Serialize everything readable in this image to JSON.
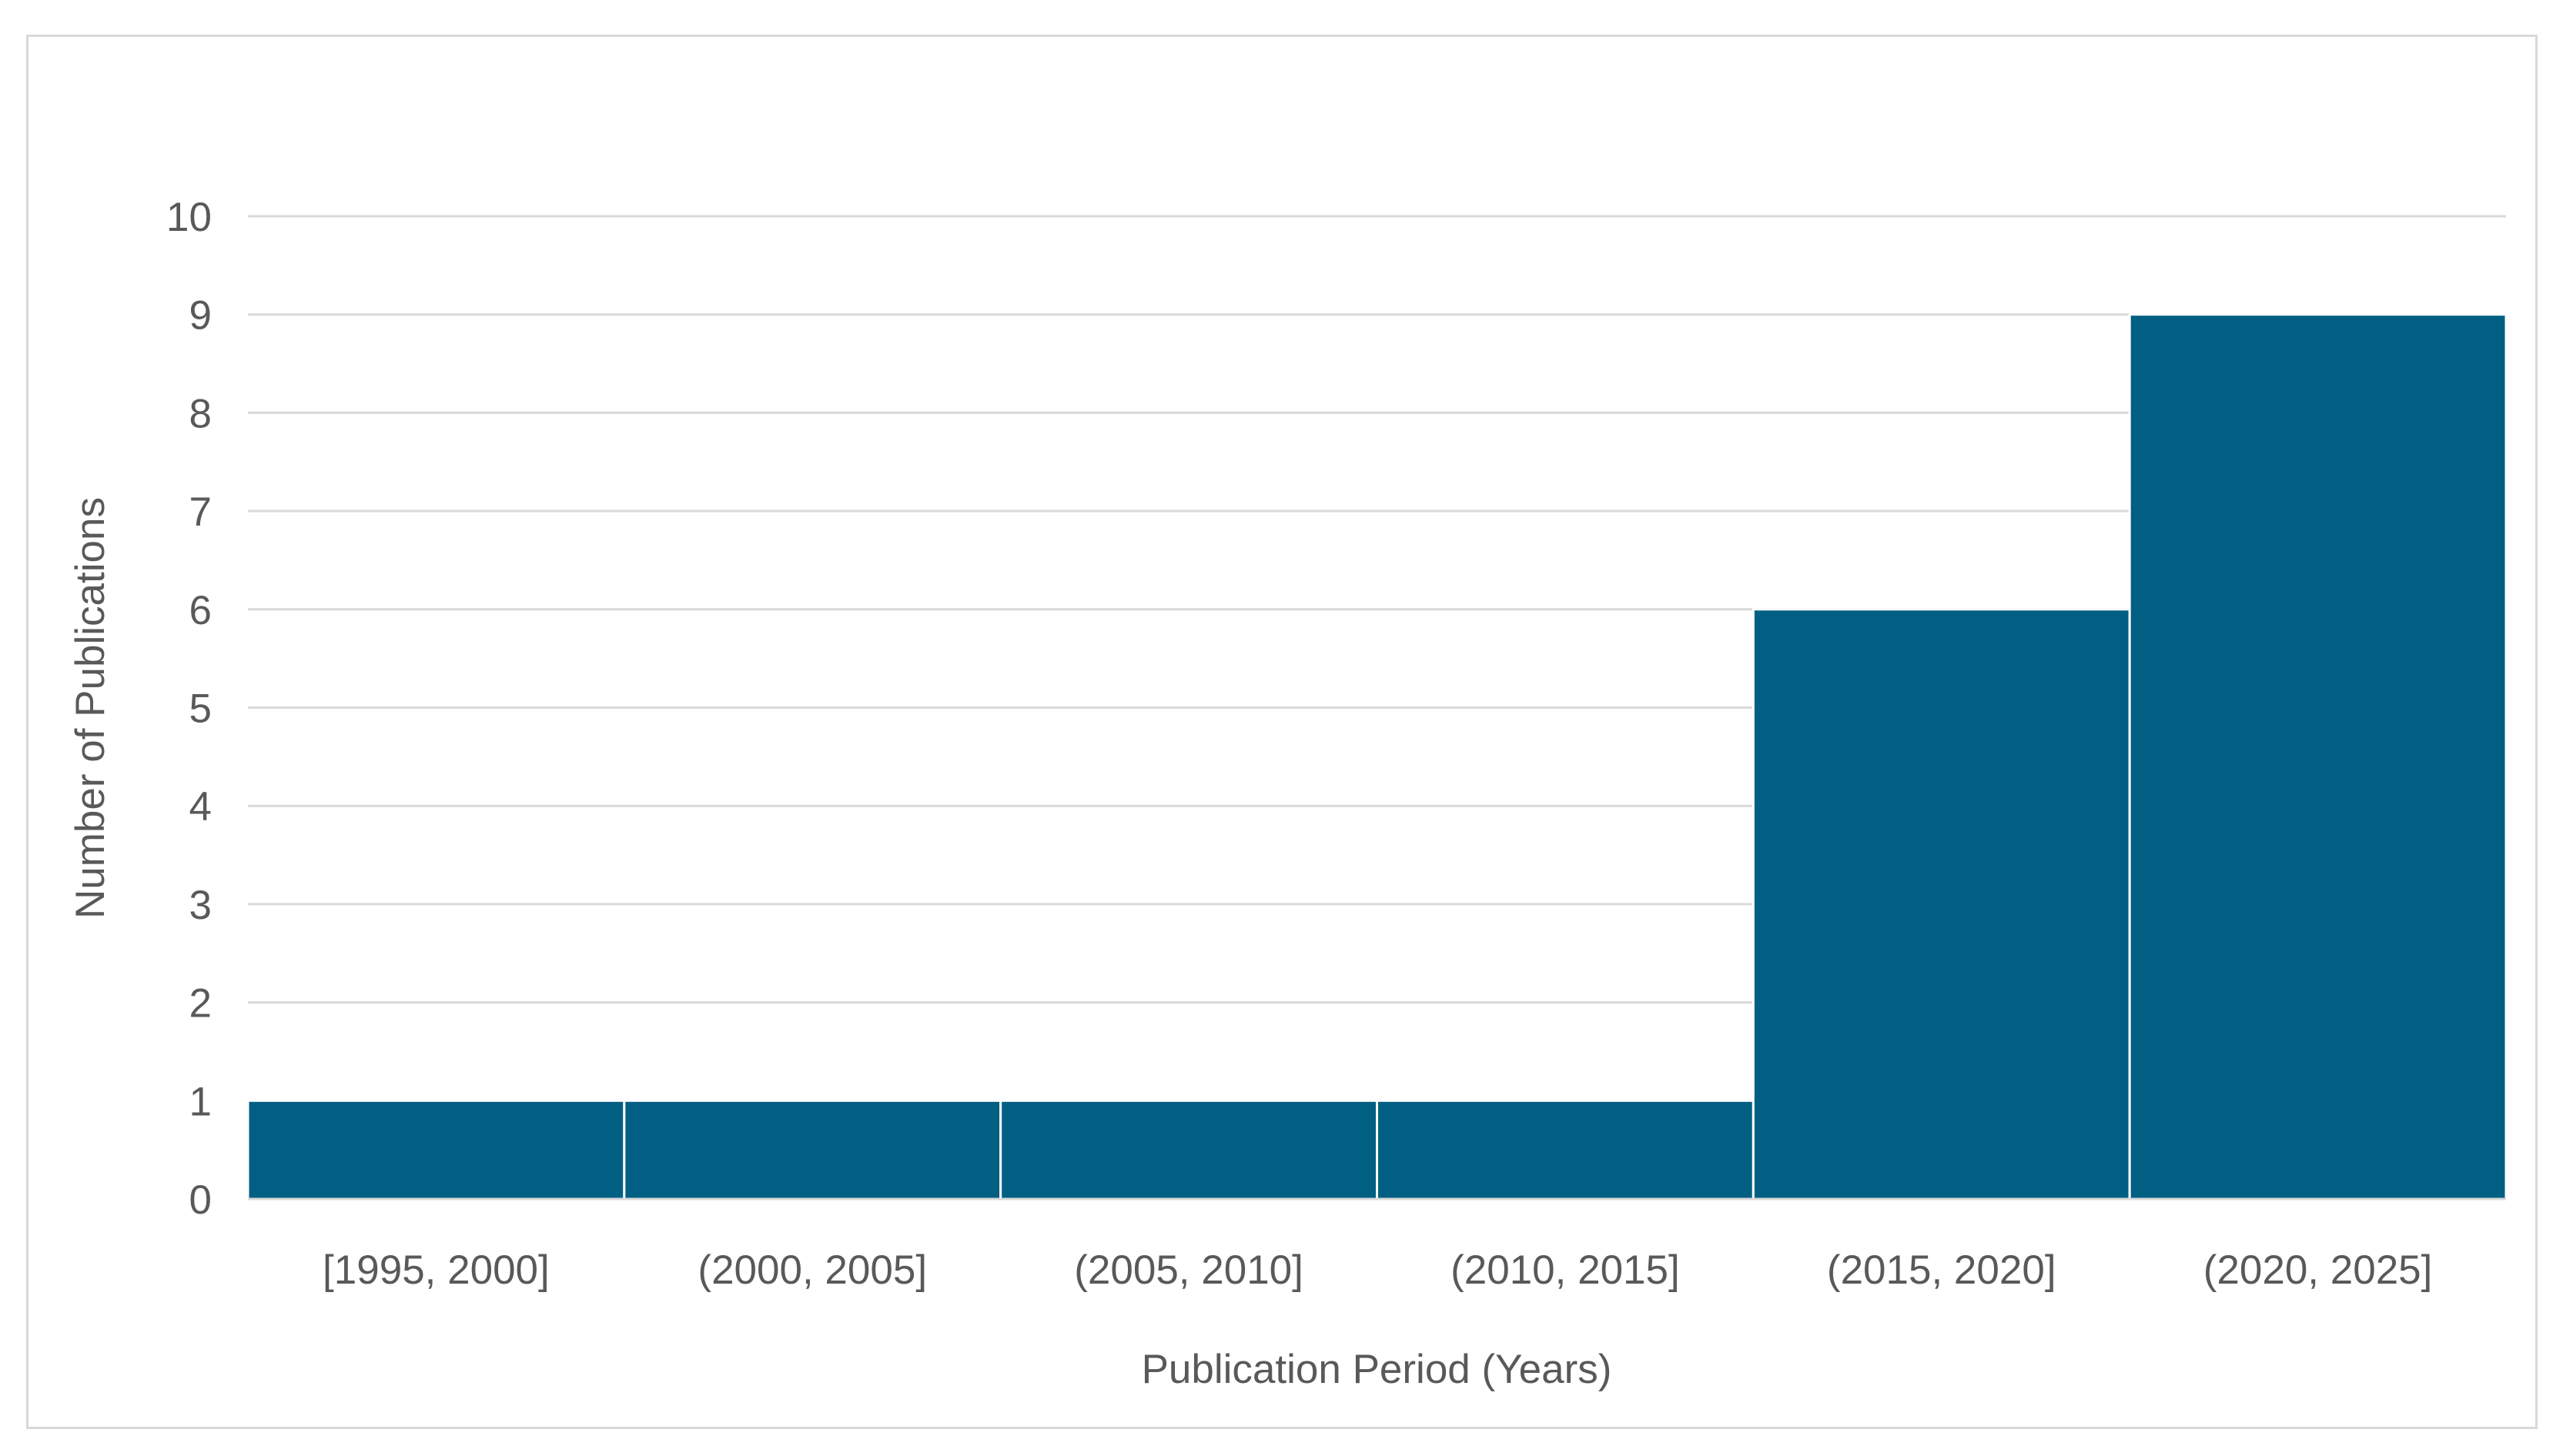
{
  "chart_data": {
    "type": "bar",
    "title": "",
    "xlabel": "Publication Period (Years)",
    "ylabel": "Number of Publications",
    "categories": [
      "[1995, 2000]",
      "(2000, 2005]",
      "(2005, 2010]",
      "(2010, 2015]",
      "(2015, 2020]",
      "(2020, 2025]"
    ],
    "values": [
      1,
      1,
      1,
      1,
      6,
      9
    ],
    "ylim": [
      0,
      10
    ],
    "yticks": [
      "0",
      "1",
      "2",
      "3",
      "4",
      "5",
      "6",
      "7",
      "8",
      "9",
      "10"
    ],
    "grid": true,
    "legend": "none",
    "bar_color": "#005f83",
    "grid_color": "#d9d9d9"
  }
}
